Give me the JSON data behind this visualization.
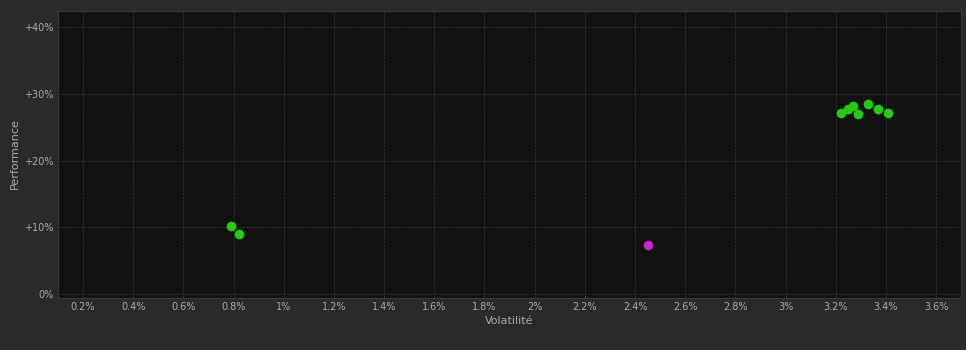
{
  "background_color": "#2a2a2a",
  "plot_bg_color": "#111111",
  "grid_color": "#3a3a3a",
  "text_color": "#aaaaaa",
  "xlabel": "Volatilité",
  "ylabel": "Performance",
  "xlim": [
    0.001,
    0.037
  ],
  "ylim": [
    -0.005,
    0.425
  ],
  "xticks": [
    0.002,
    0.004,
    0.006,
    0.008,
    0.01,
    0.012,
    0.014,
    0.016,
    0.018,
    0.02,
    0.022,
    0.024,
    0.026,
    0.028,
    0.03,
    0.032,
    0.034,
    0.036
  ],
  "yticks": [
    0.0,
    0.1,
    0.2,
    0.3,
    0.4
  ],
  "ytick_labels": [
    "0%",
    "+10%",
    "+20%",
    "+30%",
    "+40%"
  ],
  "xtick_labels": [
    "0.2%",
    "0.4%",
    "0.6%",
    "0.8%",
    "1%",
    "1.2%",
    "1.4%",
    "1.6%",
    "1.8%",
    "2%",
    "2.2%",
    "2.4%",
    "2.6%",
    "2.8%",
    "3%",
    "3.2%",
    "3.4%",
    "3.6%"
  ],
  "green_points_vol": [
    0.0079,
    0.0082,
    0.0322,
    0.0325,
    0.0327,
    0.0329,
    0.0333,
    0.0337,
    0.0341
  ],
  "green_points_perf": [
    0.102,
    0.09,
    0.272,
    0.278,
    0.282,
    0.27,
    0.285,
    0.277,
    0.271
  ],
  "magenta_points_vol": [
    0.0245
  ],
  "magenta_points_perf": [
    0.073
  ],
  "green_color": "#22cc11",
  "magenta_color": "#cc22cc",
  "marker_size": 7,
  "axis_fontsize": 8,
  "tick_fontsize": 7
}
